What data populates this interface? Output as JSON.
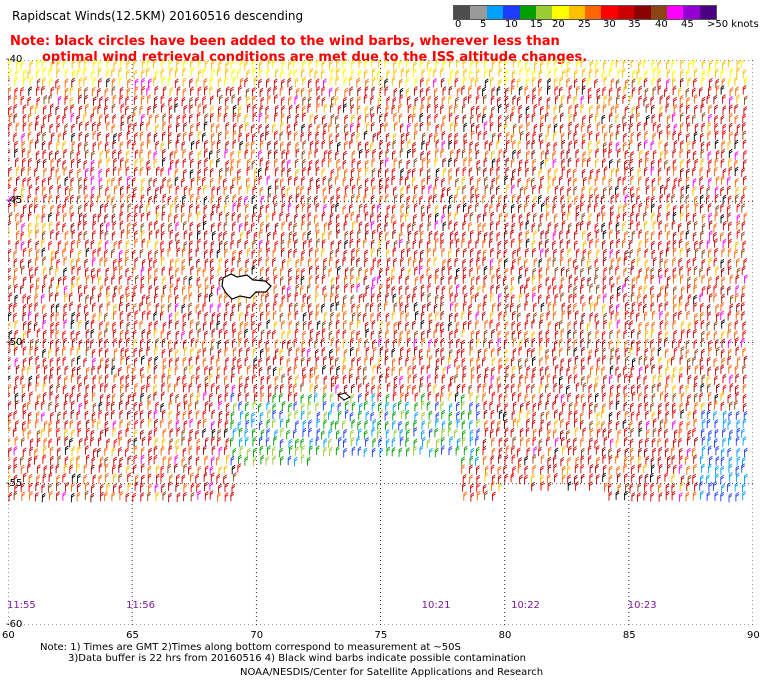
{
  "title": "Rapidscat Winds(12.5KM) 20160516 descending",
  "note_line1": "Note: black circles have been added to the wind barbs, wherever less than",
  "note_line2": "optimal wind retrieval conditions are met due to the ISS altitude changes.",
  "colorbar": {
    "labels": [
      "0",
      "5",
      "10",
      "15",
      "20",
      "25",
      "30",
      "35",
      "40",
      "45",
      ">50 knots"
    ],
    "colors": [
      "#4d4d4d",
      "#9a9a9a",
      "#00a0ff",
      "#1e3cff",
      "#00a000",
      "#9acd32",
      "#ffff00",
      "#ffc000",
      "#ff6600",
      "#ff0000",
      "#cc0000",
      "#8b0000",
      "#8b4513",
      "#ff00ff",
      "#9400d3",
      "#4b0082"
    ]
  },
  "axes": {
    "lat_labels": [
      "-40",
      "-45",
      "-50",
      "-55",
      "-60"
    ],
    "lat_values": [
      -40,
      -45,
      -50,
      -55,
      -60
    ],
    "lon_labels": [
      "60",
      "65",
      "70",
      "75",
      "80",
      "85",
      "90"
    ],
    "lon_values": [
      60,
      65,
      70,
      75,
      80,
      85,
      90
    ]
  },
  "time_labels": [
    {
      "text": "11:55",
      "lon": 60.2
    },
    {
      "text": "11:56",
      "lon": 65.0
    },
    {
      "text": "10:21",
      "lon": 76.9
    },
    {
      "text": "10:22",
      "lon": 80.5
    },
    {
      "text": "10:23",
      "lon": 85.2
    }
  ],
  "footer": {
    "line1": "Note: 1) Times are GMT 2)Times along bottom correspond to measurement at ~50S",
    "line2": "3)Data buffer is 22 hrs from 20160516 4) Black wind barbs indicate possible contamination",
    "line3": "NOAA/NESDIS/Center for Satellite Applications and Research"
  }
}
